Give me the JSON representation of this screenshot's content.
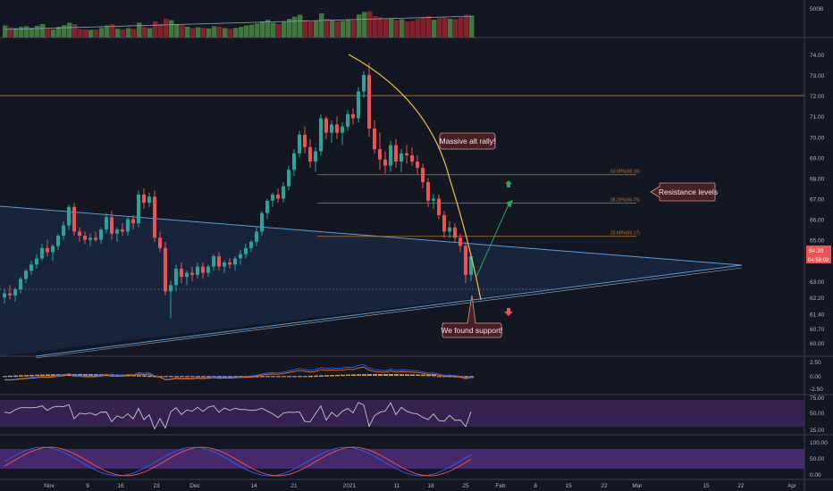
{
  "colors": {
    "background": "#131722",
    "up": "#26a69a",
    "down": "#ef5350",
    "vol_up": "#3d7a3a",
    "vol_down": "#8c1d2a",
    "triangle_line": "#5b9bd5",
    "triangle_fill": "#1a2a45",
    "curve": "#f0c040",
    "fib": "#c8742a",
    "resistance_line": "#b5652a",
    "arrow_up": "#26a65b",
    "arrow_down": "#ef5350",
    "callout_bg": "#4a1f24",
    "callout_border": "#c89a9a",
    "stoch_band": "#4b2b73",
    "rsi_band": "#3a2455"
  },
  "price_axis": {
    "labels": [
      "74.00",
      "73.00",
      "72.00",
      "71.00",
      "70.00",
      "69.00",
      "68.00",
      "67.00",
      "66.00",
      "65.00",
      "64.00",
      "63.00",
      "62.20",
      "61.40",
      "60.70",
      "60.00"
    ],
    "current_price": "64.20",
    "countdown": "04:58:02"
  },
  "volume_axis": {
    "label": "500B"
  },
  "macd_axis": {
    "labels": [
      "2.50",
      "0.00",
      "-2.50"
    ]
  },
  "rsi_axis": {
    "labels": [
      "75.00",
      "50.00",
      "25.00"
    ]
  },
  "stoch_axis": {
    "labels": [
      "100.00",
      "50.00",
      "0.00"
    ]
  },
  "time_axis": {
    "labels": [
      "Nov",
      "9",
      "16",
      "23",
      "Dec",
      "14",
      "21",
      "2021",
      "11",
      "18",
      "25",
      "Feb",
      "8",
      "15",
      "22",
      "Mar",
      "15",
      "22",
      "Apr"
    ]
  },
  "fib_labels": [
    "50.00%(68.16)",
    "38.20%(66.79)",
    "23.60%(65.17)"
  ],
  "annotations": {
    "rally": "Massive alt rally!",
    "resistance": "Resistance levels",
    "support": "We found support!"
  },
  "chart_data": {
    "type": "candlestick",
    "ylim": [
      59.5,
      74.5
    ],
    "candles": [
      [
        62.2,
        62.6,
        61.9,
        62.4
      ],
      [
        62.4,
        62.8,
        62.1,
        62.3
      ],
      [
        62.3,
        62.7,
        62.0,
        62.6
      ],
      [
        62.6,
        63.2,
        62.4,
        63.1
      ],
      [
        63.1,
        63.6,
        62.9,
        63.5
      ],
      [
        63.5,
        64.0,
        63.3,
        63.8
      ],
      [
        63.8,
        64.3,
        63.6,
        64.1
      ],
      [
        64.1,
        64.8,
        64.0,
        64.6
      ],
      [
        64.6,
        65.0,
        64.2,
        64.4
      ],
      [
        64.4,
        64.8,
        64.0,
        64.7
      ],
      [
        64.7,
        65.3,
        64.5,
        65.2
      ],
      [
        65.2,
        65.9,
        65.0,
        65.7
      ],
      [
        65.7,
        66.7,
        65.5,
        66.6
      ],
      [
        66.6,
        66.8,
        65.2,
        65.4
      ],
      [
        65.4,
        65.6,
        64.9,
        65.2
      ],
      [
        65.2,
        65.4,
        64.8,
        65.0
      ],
      [
        65.0,
        65.3,
        64.7,
        65.1
      ],
      [
        65.1,
        65.4,
        64.9,
        65.0
      ],
      [
        65.0,
        65.6,
        64.8,
        65.5
      ],
      [
        65.5,
        66.3,
        65.3,
        66.1
      ],
      [
        66.1,
        66.4,
        65.0,
        65.3
      ],
      [
        65.3,
        65.6,
        64.9,
        65.5
      ],
      [
        65.5,
        65.8,
        65.2,
        65.4
      ],
      [
        65.4,
        66.1,
        65.2,
        66.0
      ],
      [
        66.0,
        66.2,
        65.5,
        65.8
      ],
      [
        65.8,
        67.4,
        65.6,
        67.2
      ],
      [
        67.2,
        67.5,
        66.5,
        66.8
      ],
      [
        66.8,
        67.3,
        66.6,
        67.1
      ],
      [
        67.1,
        67.4,
        64.9,
        65.1
      ],
      [
        65.1,
        65.4,
        64.4,
        64.6
      ],
      [
        64.6,
        64.9,
        62.3,
        62.5
      ],
      [
        62.5,
        63.0,
        61.2,
        62.8
      ],
      [
        62.8,
        63.8,
        62.5,
        63.6
      ],
      [
        63.6,
        63.9,
        62.9,
        63.2
      ],
      [
        63.2,
        63.5,
        62.8,
        63.4
      ],
      [
        63.4,
        63.7,
        63.0,
        63.3
      ],
      [
        63.3,
        63.9,
        63.1,
        63.7
      ],
      [
        63.7,
        63.9,
        63.1,
        63.4
      ],
      [
        63.4,
        63.8,
        63.2,
        63.7
      ],
      [
        63.7,
        64.3,
        63.5,
        64.2
      ],
      [
        64.2,
        64.4,
        63.5,
        63.7
      ],
      [
        63.7,
        64.0,
        63.4,
        63.9
      ],
      [
        63.9,
        64.1,
        63.6,
        63.8
      ],
      [
        63.8,
        64.2,
        63.5,
        64.1
      ],
      [
        64.1,
        64.5,
        63.8,
        64.3
      ],
      [
        64.3,
        64.8,
        64.1,
        64.6
      ],
      [
        64.6,
        65.0,
        64.4,
        64.9
      ],
      [
        64.9,
        65.6,
        64.7,
        65.4
      ],
      [
        65.4,
        66.4,
        65.2,
        66.3
      ],
      [
        66.3,
        67.0,
        66.0,
        66.9
      ],
      [
        66.9,
        67.3,
        66.6,
        67.2
      ],
      [
        67.2,
        67.5,
        66.8,
        67.0
      ],
      [
        67.0,
        67.8,
        66.8,
        67.6
      ],
      [
        67.6,
        68.6,
        67.4,
        68.4
      ],
      [
        68.4,
        69.4,
        68.1,
        69.2
      ],
      [
        69.2,
        70.3,
        69.0,
        70.1
      ],
      [
        70.1,
        70.5,
        69.2,
        69.5
      ],
      [
        69.5,
        69.9,
        68.5,
        68.8
      ],
      [
        68.8,
        69.5,
        68.3,
        69.3
      ],
      [
        69.3,
        71.1,
        69.1,
        70.9
      ],
      [
        70.9,
        71.0,
        69.9,
        70.2
      ],
      [
        70.2,
        70.8,
        69.7,
        70.6
      ],
      [
        70.6,
        71.0,
        69.9,
        70.2
      ],
      [
        70.2,
        70.7,
        69.6,
        70.5
      ],
      [
        70.5,
        71.3,
        70.3,
        71.1
      ],
      [
        71.1,
        71.4,
        70.6,
        70.9
      ],
      [
        70.9,
        72.4,
        70.7,
        72.2
      ],
      [
        72.2,
        73.2,
        71.9,
        73.0
      ],
      [
        73.0,
        73.6,
        70.0,
        70.4
      ],
      [
        70.4,
        70.8,
        69.2,
        69.4
      ],
      [
        69.4,
        70.2,
        68.4,
        68.9
      ],
      [
        68.9,
        69.3,
        68.2,
        68.6
      ],
      [
        68.6,
        69.8,
        68.3,
        69.6
      ],
      [
        69.6,
        69.9,
        68.5,
        68.8
      ],
      [
        68.8,
        69.4,
        68.3,
        69.2
      ],
      [
        69.2,
        69.6,
        68.7,
        69.1
      ],
      [
        69.1,
        69.5,
        68.6,
        68.8
      ],
      [
        68.8,
        69.1,
        68.2,
        68.5
      ],
      [
        68.5,
        68.7,
        67.5,
        67.8
      ],
      [
        67.8,
        68.0,
        66.6,
        66.9
      ],
      [
        66.9,
        67.2,
        66.5,
        67.0
      ],
      [
        67.0,
        67.2,
        66.0,
        66.2
      ],
      [
        66.2,
        66.4,
        65.1,
        65.4
      ],
      [
        65.4,
        65.9,
        65.1,
        65.6
      ],
      [
        65.6,
        65.8,
        64.9,
        65.1
      ],
      [
        65.1,
        65.3,
        64.4,
        64.7
      ],
      [
        64.7,
        64.9,
        62.9,
        63.3
      ],
      [
        63.3,
        64.3,
        63.0,
        64.2
      ]
    ],
    "volume": [
      0.45,
      0.38,
      0.35,
      0.4,
      0.42,
      0.36,
      0.44,
      0.5,
      0.34,
      0.3,
      0.4,
      0.46,
      0.55,
      0.5,
      0.32,
      0.3,
      0.28,
      0.3,
      0.36,
      0.45,
      0.5,
      0.33,
      0.3,
      0.35,
      0.32,
      0.55,
      0.4,
      0.35,
      0.6,
      0.5,
      0.7,
      0.65,
      0.5,
      0.45,
      0.4,
      0.35,
      0.38,
      0.36,
      0.34,
      0.42,
      0.4,
      0.35,
      0.32,
      0.36,
      0.4,
      0.45,
      0.48,
      0.52,
      0.6,
      0.66,
      0.55,
      0.5,
      0.58,
      0.7,
      0.78,
      0.85,
      0.65,
      0.6,
      0.62,
      0.9,
      0.7,
      0.66,
      0.6,
      0.62,
      0.68,
      0.64,
      0.86,
      0.95,
      0.98,
      0.8,
      0.75,
      0.7,
      0.72,
      0.65,
      0.68,
      0.6,
      0.62,
      0.7,
      0.75,
      0.8,
      0.66,
      0.72,
      0.78,
      0.7,
      0.68,
      0.75,
      0.85,
      0.82
    ],
    "resistance_level": 72.0,
    "fib_levels": [
      68.16,
      66.79,
      65.17
    ],
    "dotted_level": 62.6
  }
}
